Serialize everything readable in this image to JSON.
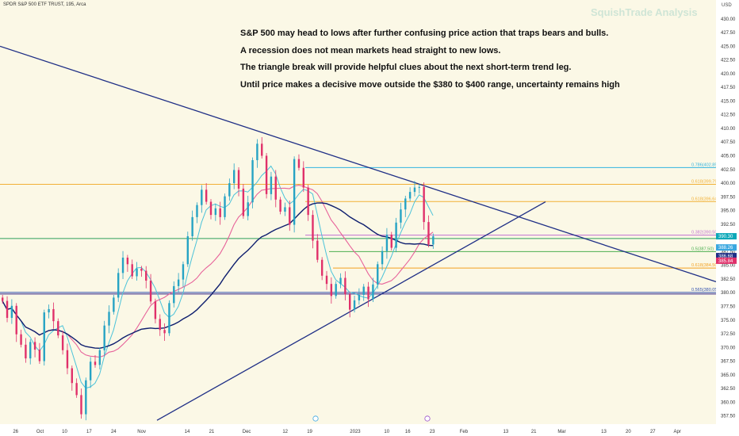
{
  "header": {
    "symbol_title": "SPDR S&P 500 ETF TRUST, 195, Arca",
    "watermark": "SquishTrade Analysis",
    "currency": "USD"
  },
  "annotations": [
    "S&P 500 may head to lows after further confusing price action that traps bears and bulls.",
    "A recession does not mean markets head straight to new lows.",
    "The triangle break will provide helpful clues about the next short-term trend leg.",
    "Until price makes a decisive move outside the $380 to $400 range, uncertainty remains high"
  ],
  "colors": {
    "background": "#fbf8e6",
    "up_candle": "#26a3c4",
    "down_candle": "#e0306a",
    "trendline": "#1f2f86",
    "ma_fast": "#4cc3d9",
    "ma_mid": "#e7639a",
    "ma_slow": "#0e1e6e"
  },
  "chart_data": {
    "type": "candlestick",
    "ylim": [
      356,
      432
    ],
    "y_ticks": [
      "357.50",
      "360.00",
      "362.50",
      "365.00",
      "367.50",
      "370.00",
      "372.50",
      "375.00",
      "377.50",
      "380.00",
      "382.50",
      "385.00",
      "387.50",
      "390.00",
      "392.50",
      "395.00",
      "397.50",
      "400.00",
      "402.50",
      "405.00",
      "407.50",
      "410.00",
      "412.50",
      "415.00",
      "417.50",
      "420.00",
      "422.50",
      "425.00",
      "427.50",
      "430.00"
    ],
    "x_ticks": [
      {
        "label": "26",
        "date": "2022-09-26"
      },
      {
        "label": "Oct",
        "date": "2022-10-03"
      },
      {
        "label": "10",
        "date": "2022-10-10"
      },
      {
        "label": "17",
        "date": "2022-10-17"
      },
      {
        "label": "24",
        "date": "2022-10-24"
      },
      {
        "label": "Nov",
        "date": "2022-11-01"
      },
      {
        "label": "14",
        "date": "2022-11-14"
      },
      {
        "label": "21",
        "date": "2022-11-21"
      },
      {
        "label": "Dec",
        "date": "2022-12-01"
      },
      {
        "label": "12",
        "date": "2022-12-12"
      },
      {
        "label": "19",
        "date": "2022-12-19"
      },
      {
        "label": "2023",
        "date": "2023-01-01"
      },
      {
        "label": "10",
        "date": "2023-01-10"
      },
      {
        "label": "16",
        "date": "2023-01-16"
      },
      {
        "label": "23",
        "date": "2023-01-23"
      },
      {
        "label": "Feb",
        "date": "2023-02-01"
      },
      {
        "label": "13",
        "date": "2023-02-13"
      },
      {
        "label": "21",
        "date": "2023-02-21"
      },
      {
        "label": "Mar",
        "date": "2023-03-01"
      },
      {
        "label": "13",
        "date": "2023-03-13"
      },
      {
        "label": "20",
        "date": "2023-03-20"
      },
      {
        "label": "27",
        "date": "2023-03-27"
      },
      {
        "label": "Apr",
        "date": "2023-04-03"
      }
    ],
    "price_path": [
      [
        0,
        378.5
      ],
      [
        2,
        375.4
      ],
      [
        4,
        377.6
      ],
      [
        6,
        372.4
      ],
      [
        8,
        370.5
      ],
      [
        10,
        368.0
      ],
      [
        12,
        371.0
      ],
      [
        14,
        369.6
      ],
      [
        16,
        367.5
      ],
      [
        18,
        376.4
      ],
      [
        20,
        377.0
      ],
      [
        22,
        374.8
      ],
      [
        24,
        372.2
      ],
      [
        26,
        369.5
      ],
      [
        28,
        366.2
      ],
      [
        30,
        363.5
      ],
      [
        32,
        361.3
      ],
      [
        34,
        357.8
      ],
      [
        36,
        364.0
      ],
      [
        38,
        367.4
      ],
      [
        40,
        366.8
      ],
      [
        42,
        369.5
      ],
      [
        44,
        374.0
      ],
      [
        46,
        376.5
      ],
      [
        48,
        379.1
      ],
      [
        50,
        383.6
      ],
      [
        52,
        386.4
      ],
      [
        54,
        385.2
      ],
      [
        56,
        383.0
      ],
      [
        58,
        384.4
      ],
      [
        60,
        384.0
      ],
      [
        62,
        382.2
      ],
      [
        64,
        378.4
      ],
      [
        66,
        375.2
      ],
      [
        68,
        373.2
      ],
      [
        70,
        372.6
      ],
      [
        72,
        378.1
      ],
      [
        74,
        381.2
      ],
      [
        76,
        382.4
      ],
      [
        78,
        385.2
      ],
      [
        80,
        390.3
      ],
      [
        82,
        393.8
      ],
      [
        84,
        396.0
      ],
      [
        86,
        398.8
      ],
      [
        88,
        396.6
      ],
      [
        90,
        394.2
      ],
      [
        92,
        395.4
      ],
      [
        94,
        393.8
      ],
      [
        96,
        397.6
      ],
      [
        98,
        400.0
      ],
      [
        100,
        402.4
      ],
      [
        102,
        399.0
      ],
      [
        104,
        394.0
      ],
      [
        106,
        396.5
      ],
      [
        108,
        404.2
      ],
      [
        110,
        407.2
      ],
      [
        112,
        405.0
      ],
      [
        114,
        398.0
      ],
      [
        116,
        401.2
      ],
      [
        118,
        397.0
      ],
      [
        120,
        394.8
      ],
      [
        122,
        395.6
      ],
      [
        124,
        392.4
      ],
      [
        126,
        404.4
      ],
      [
        128,
        402.8
      ],
      [
        130,
        399.2
      ],
      [
        132,
        394.2
      ],
      [
        134,
        389.5
      ],
      [
        136,
        386.0
      ],
      [
        138,
        383.1
      ],
      [
        140,
        381.6
      ],
      [
        142,
        379.4
      ],
      [
        144,
        381.6
      ],
      [
        146,
        382.7
      ],
      [
        148,
        379.7
      ],
      [
        150,
        376.9
      ],
      [
        152,
        378.6
      ],
      [
        154,
        379.6
      ],
      [
        156,
        381.1
      ],
      [
        158,
        378.8
      ],
      [
        160,
        381.5
      ],
      [
        162,
        385.2
      ],
      [
        164,
        387.6
      ],
      [
        166,
        390.6
      ],
      [
        168,
        388.2
      ],
      [
        170,
        392.8
      ],
      [
        172,
        395.2
      ],
      [
        174,
        397.2
      ],
      [
        176,
        398.4
      ],
      [
        178,
        399.2
      ],
      [
        180,
        399.3
      ],
      [
        182,
        392.9
      ],
      [
        184,
        388.8
      ],
      [
        186,
        390.3
      ]
    ],
    "ohlc_note": "Hourly (195-minute) bars, S&P 500 ETF (SPY)",
    "levels": [
      {
        "label": "0.786(402.85)",
        "value": 402.85,
        "color": "#32b3e0"
      },
      {
        "label": "0.618(399.79)",
        "value": 399.79,
        "color": "#f2b035"
      },
      {
        "label": "0.618(396.64)",
        "value": 396.64,
        "color": "#f2b035"
      },
      {
        "label": "0.382(390.50)",
        "value": 390.5,
        "color": "#c070d0"
      },
      {
        "label": "0.5(387.50)",
        "value": 387.5,
        "color": "#4caf50"
      },
      {
        "label": "0.618(384.50)",
        "value": 384.5,
        "color": "#f2a020"
      },
      {
        "label": "0.565(380.05)",
        "value": 380.05,
        "color": "#3050b0"
      }
    ],
    "extra_level": 389.9,
    "price_tags": [
      {
        "text": "390.30",
        "value": 390.3,
        "bg": "#0ca8b8",
        "fg": "#ffffff"
      },
      {
        "text": "388.26",
        "value": 388.26,
        "bg": "#3aa7e0",
        "fg": "#ffffff"
      },
      {
        "text": "386.68",
        "value": 386.68,
        "bg": "#1f2f86",
        "fg": "#ffffff"
      },
      {
        "text": "385.84",
        "value": 385.84,
        "bg": "#e0306a",
        "fg": "#ffffff"
      }
    ],
    "moving_averages": [
      {
        "points": [
          [
            0,
            0
          ],
          [
            0,
            0
          ]
        ]
      }
    ]
  }
}
